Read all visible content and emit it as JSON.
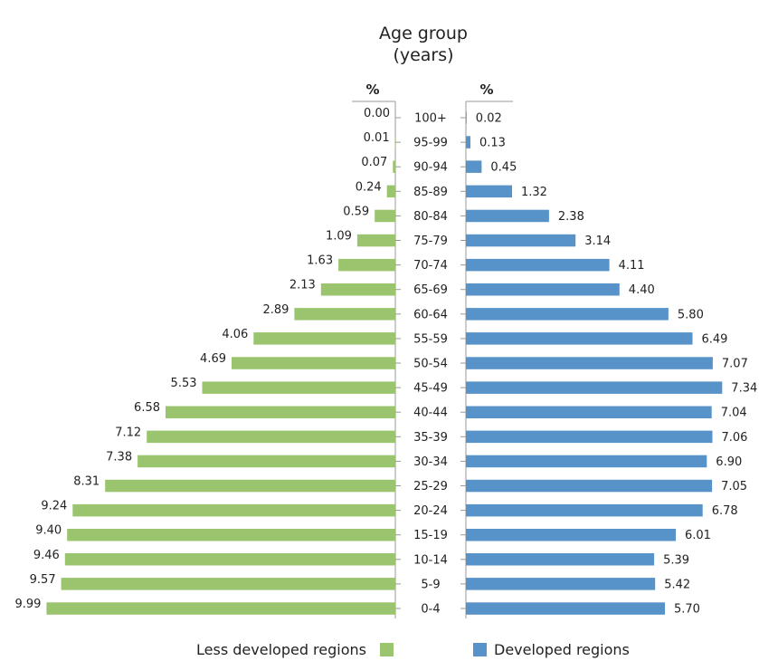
{
  "chart_data": {
    "type": "bar",
    "orientation": "horizontal",
    "layout": "population-pyramid",
    "title": "Age group",
    "subtitle": "(years)",
    "unit_label_left": "%",
    "unit_label_right": "%",
    "categories": [
      "100+",
      "95-99",
      "90-94",
      "85-89",
      "80-84",
      "75-79",
      "70-74",
      "65-69",
      "60-64",
      "55-59",
      "50-54",
      "45-49",
      "40-44",
      "35-39",
      "30-34",
      "25-29",
      "20-24",
      "15-19",
      "10-14",
      "5-9",
      "0-4"
    ],
    "value_labels_left": [
      "0.00",
      "0.01",
      "0.07",
      "0.24",
      "0.59",
      "1.09",
      "1.63",
      "2.13",
      "2.89",
      "4.06",
      "4.69",
      "5.53",
      "6.58",
      "7.12",
      "7.38",
      "8.31",
      "9.24",
      "9.40",
      "9.46",
      "9.57",
      "9.99"
    ],
    "value_labels_right": [
      "0.02",
      "0.13",
      "0.45",
      "1.32",
      "2.38",
      "3.14",
      "4.11",
      "4.40",
      "5.80",
      "6.49",
      "7.07",
      "7.34",
      "7.04",
      "7.06",
      "6.90",
      "7.05",
      "6.78",
      "6.01",
      "5.39",
      "5.42",
      "5.70"
    ],
    "series": [
      {
        "name": "Less developed regions",
        "side": "left",
        "color": "#9bc46e",
        "values": [
          0.0,
          0.01,
          0.07,
          0.24,
          0.59,
          1.09,
          1.63,
          2.13,
          2.89,
          4.06,
          4.69,
          5.53,
          6.58,
          7.12,
          7.38,
          8.31,
          9.24,
          9.4,
          9.46,
          9.57,
          9.99
        ]
      },
      {
        "name": "Developed regions",
        "side": "right",
        "color": "#5793c8",
        "values": [
          0.02,
          0.13,
          0.45,
          1.32,
          2.38,
          3.14,
          4.11,
          4.4,
          5.8,
          6.49,
          7.07,
          7.34,
          7.04,
          7.06,
          6.9,
          7.05,
          6.78,
          6.01,
          5.39,
          5.42,
          5.7
        ]
      }
    ],
    "legend": {
      "placement": "bottom",
      "entries": [
        "Less developed regions",
        "Developed regions"
      ]
    },
    "grid": false
  }
}
